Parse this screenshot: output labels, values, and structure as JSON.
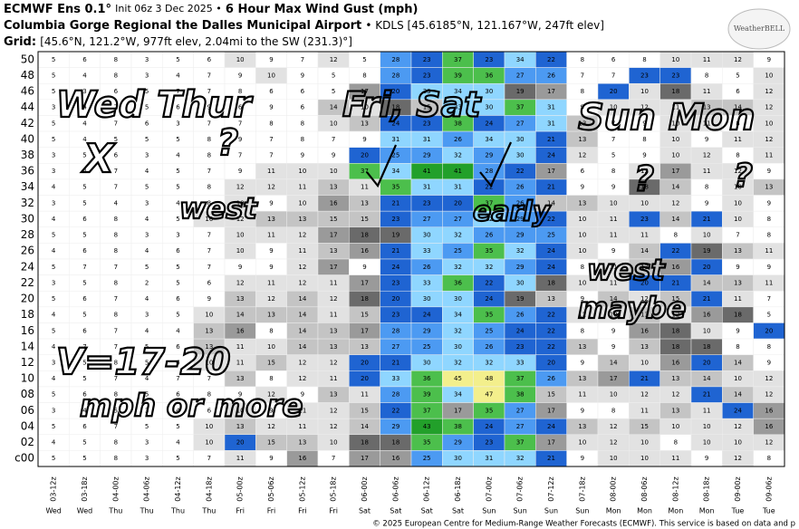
{
  "chart_data": {
    "type": "heatmap",
    "title_parts": [
      "ECMWF Ens 0.1°",
      "Init 06z 3 Dec 2025 •",
      "6 Hour Max Wind Gust (mph)"
    ],
    "subtitle_parts": [
      "Columbia Gorge Regional the Dalles Municipal Airport",
      "• KDLS [45.6185°N, 121.167°W, 247ft elev]"
    ],
    "grid_parts": [
      "Grid:",
      "[45.6°N, 121.2°W, 977ft elev, 2.04mi to the SW (231.3)°]"
    ],
    "logo": "WeatherBELL",
    "footer": "© 2025 European Centre for Medium-Range Weather Forecasts (ECMWF). This service is based on data and p",
    "rows": [
      "50",
      "48",
      "46",
      "44",
      "42",
      "40",
      "38",
      "36",
      "34",
      "32",
      "30",
      "28",
      "26",
      "24",
      "22",
      "20",
      "18",
      "16",
      "14",
      "12",
      "10",
      "08",
      "06",
      "04",
      "02",
      "c00"
    ],
    "x": [
      "03-12z",
      "03-18z",
      "04-00z",
      "04-06z",
      "04-12z",
      "04-18z",
      "05-00z",
      "05-06z",
      "05-12z",
      "05-18z",
      "06-00z",
      "06-06z",
      "06-12z",
      "06-18z",
      "07-00z",
      "07-06z",
      "07-12z",
      "07-18z",
      "08-00z",
      "08-06z",
      "08-12z",
      "08-18z",
      "09-00z",
      "09-06z"
    ],
    "days": [
      "Wed",
      "Wed",
      "Thu",
      "Thu",
      "Thu",
      "Thu",
      "Fri",
      "Fri",
      "Fri",
      "Fri",
      "Sat",
      "Sat",
      "Sat",
      "Sat",
      "Sun",
      "Sun",
      "Sun",
      "Sun",
      "Mon",
      "Mon",
      "Mon",
      "Mon",
      "Tue",
      "Tue"
    ],
    "values": [
      [
        5,
        6,
        8,
        3,
        5,
        6,
        10,
        9,
        7,
        12,
        5,
        28,
        23,
        37,
        23,
        34,
        22,
        8,
        6,
        8,
        10,
        11,
        12,
        9
      ],
      [
        5,
        4,
        8,
        3,
        4,
        7,
        9,
        10,
        9,
        5,
        8,
        28,
        23,
        39,
        36,
        27,
        26,
        7,
        7,
        23,
        23,
        8,
        5,
        10
      ],
      [
        5,
        3,
        6,
        5,
        7,
        7,
        8,
        6,
        6,
        5,
        17,
        20,
        33,
        34,
        30,
        19,
        17,
        8,
        20,
        10,
        18,
        11,
        6,
        12
      ],
      [
        3,
        4,
        7,
        5,
        6,
        9,
        6,
        9,
        6,
        14,
        10,
        18,
        15,
        33,
        30,
        37,
        31,
        9,
        10,
        12,
        11,
        13,
        14,
        12
      ],
      [
        5,
        4,
        7,
        6,
        3,
        7,
        7,
        8,
        8,
        10,
        13,
        24,
        23,
        38,
        24,
        27,
        31,
        13,
        7,
        9,
        10,
        11,
        8,
        10
      ],
      [
        5,
        4,
        5,
        5,
        5,
        8,
        9,
        7,
        8,
        7,
        9,
        31,
        31,
        26,
        34,
        30,
        21,
        13,
        7,
        8,
        10,
        9,
        11,
        12
      ],
      [
        3,
        5,
        6,
        3,
        4,
        8,
        7,
        7,
        9,
        9,
        20,
        25,
        29,
        32,
        29,
        30,
        24,
        12,
        5,
        9,
        10,
        12,
        8,
        11
      ],
      [
        3,
        4,
        7,
        4,
        5,
        7,
        9,
        11,
        10,
        10,
        37,
        34,
        41,
        41,
        28,
        22,
        17,
        6,
        8,
        12,
        17,
        11,
        12,
        9
      ],
      [
        4,
        5,
        7,
        5,
        5,
        8,
        12,
        12,
        11,
        13,
        11,
        35,
        31,
        31,
        22,
        26,
        21,
        9,
        9,
        18,
        14,
        8,
        10,
        13
      ],
      [
        3,
        5,
        4,
        3,
        4,
        8,
        10,
        9,
        10,
        16,
        13,
        21,
        23,
        20,
        37,
        26,
        14,
        13,
        10,
        10,
        12,
        9,
        10,
        9
      ],
      [
        4,
        6,
        8,
        4,
        5,
        10,
        12,
        13,
        13,
        15,
        15,
        23,
        27,
        27,
        32,
        29,
        22,
        10,
        11,
        23,
        14,
        21,
        10,
        8
      ],
      [
        5,
        5,
        8,
        3,
        3,
        7,
        10,
        11,
        12,
        17,
        18,
        19,
        30,
        32,
        26,
        29,
        25,
        10,
        11,
        11,
        8,
        10,
        7,
        8
      ],
      [
        4,
        6,
        8,
        4,
        6,
        7,
        10,
        9,
        11,
        13,
        16,
        21,
        33,
        25,
        35,
        32,
        24,
        10,
        9,
        14,
        22,
        19,
        13,
        11
      ],
      [
        5,
        7,
        7,
        5,
        5,
        7,
        9,
        9,
        12,
        17,
        9,
        24,
        26,
        32,
        32,
        29,
        24,
        8,
        11,
        13,
        16,
        20,
        9,
        9
      ],
      [
        3,
        5,
        8,
        2,
        5,
        6,
        12,
        11,
        12,
        11,
        17,
        23,
        33,
        36,
        22,
        30,
        18,
        10,
        11,
        20,
        21,
        14,
        13,
        11
      ],
      [
        5,
        6,
        7,
        4,
        6,
        9,
        13,
        12,
        14,
        12,
        18,
        20,
        30,
        30,
        24,
        19,
        13,
        9,
        14,
        12,
        15,
        21,
        11,
        7
      ],
      [
        4,
        5,
        8,
        3,
        5,
        10,
        14,
        13,
        14,
        11,
        15,
        23,
        24,
        34,
        35,
        26,
        22,
        12,
        10,
        13,
        12,
        16,
        18,
        5
      ],
      [
        5,
        6,
        7,
        4,
        4,
        13,
        16,
        8,
        14,
        13,
        17,
        28,
        29,
        32,
        25,
        24,
        22,
        8,
        9,
        16,
        18,
        10,
        9,
        20
      ],
      [
        4,
        7,
        7,
        5,
        6,
        13,
        11,
        10,
        14,
        13,
        13,
        27,
        25,
        30,
        26,
        23,
        22,
        13,
        9,
        13,
        18,
        18,
        8,
        8
      ],
      [
        3,
        5,
        8,
        5,
        4,
        10,
        11,
        15,
        12,
        12,
        20,
        21,
        30,
        32,
        32,
        33,
        20,
        9,
        14,
        10,
        16,
        20,
        14,
        9
      ],
      [
        4,
        5,
        7,
        4,
        7,
        7,
        13,
        8,
        12,
        11,
        20,
        33,
        36,
        45,
        48,
        37,
        26,
        13,
        17,
        21,
        13,
        14,
        10,
        12
      ],
      [
        5,
        6,
        8,
        5,
        6,
        8,
        9,
        12,
        9,
        13,
        11,
        28,
        39,
        34,
        47,
        38,
        15,
        11,
        10,
        12,
        12,
        21,
        14,
        12
      ],
      [
        3,
        4,
        5,
        3,
        4,
        6,
        10,
        9,
        11,
        12,
        15,
        22,
        37,
        17,
        35,
        27,
        17,
        9,
        8,
        11,
        13,
        11,
        24,
        16
      ],
      [
        5,
        6,
        7,
        5,
        5,
        10,
        13,
        12,
        11,
        12,
        14,
        29,
        43,
        38,
        24,
        27,
        24,
        13,
        12,
        15,
        10,
        10,
        12,
        16
      ],
      [
        4,
        5,
        8,
        3,
        4,
        10,
        20,
        15,
        13,
        10,
        18,
        18,
        35,
        29,
        23,
        37,
        17,
        10,
        12,
        10,
        8,
        10,
        10,
        12
      ],
      [
        5,
        5,
        8,
        3,
        5,
        7,
        11,
        9,
        16,
        7,
        17,
        16,
        25,
        30,
        31,
        32,
        21,
        9,
        10,
        10,
        11,
        9,
        12,
        8
      ]
    ],
    "color_scale": [
      {
        "from": 0,
        "color": "#ffffff"
      },
      {
        "from": 10,
        "color": "#e2e2e2"
      },
      {
        "from": 13,
        "color": "#c4c4c4"
      },
      {
        "from": 16,
        "color": "#9a9a9a"
      },
      {
        "from": 18,
        "color": "#6a6a6a"
      },
      {
        "from": 20,
        "color": "#1f64d2"
      },
      {
        "from": 25,
        "color": "#4c9af2"
      },
      {
        "from": 30,
        "color": "#8fd6ff"
      },
      {
        "from": 35,
        "color": "#4cbf4c"
      },
      {
        "from": 40,
        "color": "#22a02a"
      },
      {
        "from": 45,
        "color": "#f3ef8c"
      }
    ],
    "annotations": [
      "Wed Thur",
      "X",
      "?",
      "west",
      "Fri, Sat",
      "early",
      "Sun Mon",
      "?",
      "?",
      "west",
      "maybe",
      "V=17-20",
      "mph or more"
    ]
  }
}
